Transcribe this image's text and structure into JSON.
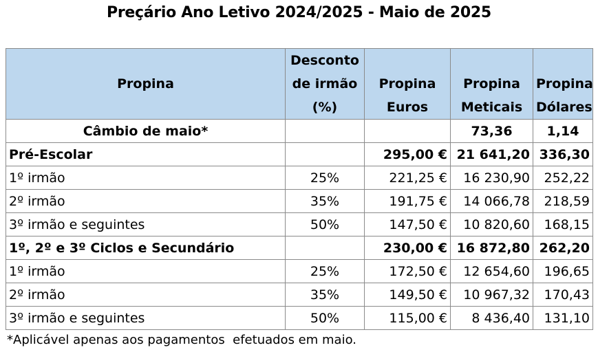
{
  "title": "Preçário Ano Letivo 2024/2025 - Maio de 2025",
  "headers": {
    "propina": "Propina",
    "desconto": "Desconto de irmão (%)",
    "euros": "Propina Euros",
    "meticais": "Propina Meticais",
    "dolares": "Propina Dólares"
  },
  "cambio": {
    "label": "Câmbio de maio*",
    "meticais": "73,36",
    "dolares": "1,14"
  },
  "pre_escolar": {
    "label": "Pré-Escolar",
    "euros": "295,00 €",
    "meticais": "21 641,20",
    "dolares": "336,30",
    "rows": [
      {
        "label": "1º irmão",
        "desconto": "25%",
        "euros": "221,25 €",
        "meticais": "16 230,90",
        "dolares": "252,22"
      },
      {
        "label": "2º irmão",
        "desconto": "35%",
        "euros": "191,75 €",
        "meticais": "14 066,78",
        "dolares": "218,59"
      },
      {
        "label": "3º irmão e seguintes",
        "desconto": "50%",
        "euros": "147,50 €",
        "meticais": "10 820,60",
        "dolares": "168,15"
      }
    ]
  },
  "ciclos": {
    "label": "1º, 2º e 3º Ciclos e Secundário",
    "euros": "230,00 €",
    "meticais": "16 872,80",
    "dolares": "262,20",
    "rows": [
      {
        "label": "1º irmão",
        "desconto": "25%",
        "euros": "172,50 €",
        "meticais": "12 654,60",
        "dolares": "196,65"
      },
      {
        "label": "2º irmão",
        "desconto": "35%",
        "euros": "149,50 €",
        "meticais": "10 967,32",
        "dolares": "170,43"
      },
      {
        "label": "3º irmão e seguintes",
        "desconto": "50%",
        "euros": "115,00 €",
        "meticais": "8 436,40",
        "dolares": "131,10"
      }
    ]
  },
  "footnote": "*Aplicável apenas aos pagamentos  efetuados em maio."
}
